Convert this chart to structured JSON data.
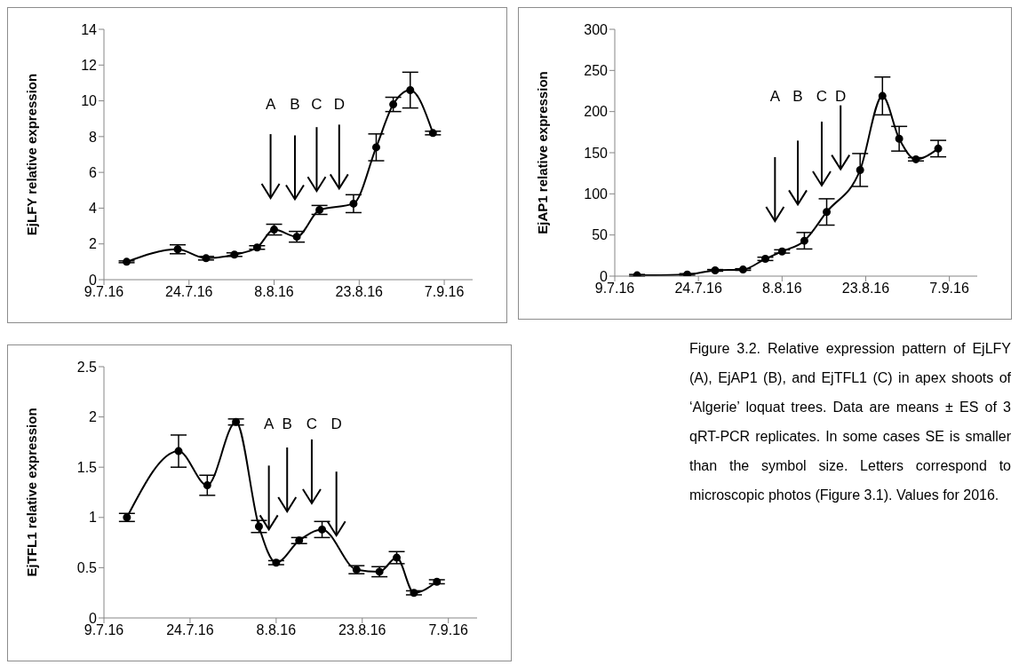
{
  "chart_data": [
    {
      "type": "line",
      "ylabel": "EjLFY relative expression",
      "color": "#000000",
      "marker": "circle",
      "line_style": "solid",
      "x": [
        "2016-07-13",
        "2016-07-22",
        "2016-07-27",
        "2016-08-01",
        "2016-08-05",
        "2016-08-08",
        "2016-08-12",
        "2016-08-16",
        "2016-08-22",
        "2016-08-26",
        "2016-08-29",
        "2016-09-01",
        "2016-09-05"
      ],
      "values": [
        1.0,
        1.7,
        1.2,
        1.4,
        1.8,
        2.8,
        2.4,
        3.9,
        4.25,
        7.4,
        9.8,
        10.6,
        8.2
      ],
      "errors": [
        0.05,
        0.25,
        0.1,
        0.1,
        0.1,
        0.3,
        0.3,
        0.25,
        0.5,
        0.75,
        0.4,
        1.0,
        0.1
      ],
      "xlim": [
        "2016-07-09",
        "2016-09-12"
      ],
      "xticks": [
        {
          "value": "2016-07-09",
          "label": "9.7.16"
        },
        {
          "value": "2016-07-24",
          "label": "24.7.16"
        },
        {
          "value": "2016-08-08",
          "label": "8.8.16"
        },
        {
          "value": "2016-08-23",
          "label": "23.8.16"
        },
        {
          "value": "2016-09-07",
          "label": "7.9.16"
        }
      ],
      "ylim": [
        0,
        14
      ],
      "yticks": [
        0,
        2,
        4,
        6,
        8,
        10,
        12,
        14
      ],
      "annotations": [
        "A",
        "B",
        "C",
        "D"
      ]
    },
    {
      "type": "line",
      "ylabel": "EjAP1 relative expression",
      "color": "#000000",
      "marker": "circle",
      "line_style": "solid",
      "x": [
        "2016-07-13",
        "2016-07-22",
        "2016-07-27",
        "2016-08-01",
        "2016-08-05",
        "2016-08-08",
        "2016-08-12",
        "2016-08-16",
        "2016-08-22",
        "2016-08-26",
        "2016-08-29",
        "2016-09-01",
        "2016-09-05"
      ],
      "values": [
        1,
        2,
        7,
        8,
        21,
        30,
        43,
        78,
        129,
        219,
        167,
        142,
        155
      ],
      "errors": [
        1,
        1,
        1,
        1,
        2,
        2,
        10,
        16,
        20,
        23,
        15,
        2,
        10
      ],
      "xlim": [
        "2016-07-09",
        "2016-09-12"
      ],
      "xticks": [
        {
          "value": "2016-07-09",
          "label": "9.7.16"
        },
        {
          "value": "2016-07-24",
          "label": "24.7.16"
        },
        {
          "value": "2016-08-08",
          "label": "8.8.16"
        },
        {
          "value": "2016-08-23",
          "label": "23.8.16"
        },
        {
          "value": "2016-09-07",
          "label": "7.9.16"
        }
      ],
      "ylim": [
        0,
        300
      ],
      "yticks": [
        0,
        50,
        100,
        150,
        200,
        250,
        300
      ],
      "annotations": [
        "A",
        "B",
        "C",
        "D"
      ]
    },
    {
      "type": "line",
      "ylabel": "EjTFL1 relative expression",
      "color": "#000000",
      "marker": "circle",
      "line_style": "solid",
      "x": [
        "2016-07-13",
        "2016-07-22",
        "2016-07-27",
        "2016-08-01",
        "2016-08-05",
        "2016-08-08",
        "2016-08-12",
        "2016-08-16",
        "2016-08-22",
        "2016-08-26",
        "2016-08-29",
        "2016-09-01",
        "2016-09-05"
      ],
      "values": [
        1.0,
        1.66,
        1.32,
        1.95,
        0.91,
        0.55,
        0.77,
        0.88,
        0.48,
        0.46,
        0.6,
        0.25,
        0.36
      ],
      "errors": [
        0.04,
        0.16,
        0.1,
        0.03,
        0.06,
        0.02,
        0.03,
        0.08,
        0.04,
        0.05,
        0.06,
        0.02,
        0.02
      ],
      "xlim": [
        "2016-07-09",
        "2016-09-12"
      ],
      "xticks": [
        {
          "value": "2016-07-09",
          "label": "9.7.16"
        },
        {
          "value": "2016-07-24",
          "label": "24.7.16"
        },
        {
          "value": "2016-08-08",
          "label": "8.8.16"
        },
        {
          "value": "2016-08-23",
          "label": "23.8.16"
        },
        {
          "value": "2016-09-07",
          "label": "7.9.16"
        }
      ],
      "ylim": [
        0,
        2.5
      ],
      "yticks": [
        0,
        0.5,
        1,
        1.5,
        2,
        2.5
      ],
      "annotations": [
        "A",
        "B",
        "C",
        "D"
      ]
    },
    {
      "type": "other",
      "annotations": [
        "Figure 3.2. Relative expression pattern of EjLFY (A), EjAP1 (B), and EjTFL1 (C) in apex shoots of ‘Algerie’ loquat trees. Data are means ± ES of 3 qRT-PCR replicates. In some cases SE is smaller than the symbol size. Letters correspond to microscopic photos (Figure 3.1). Values for 2016."
      ]
    }
  ]
}
